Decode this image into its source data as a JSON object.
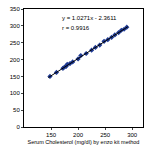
{
  "chart_data": {
    "type": "scatter",
    "x_label": "Serum Cholesterol (mg/dl) by enzo kit method",
    "annotations": [
      "y = 1.0271x - 2.3611",
      "r = 0.9916"
    ],
    "xlim": [
      100,
      320
    ],
    "xticks": [
      150,
      200,
      250,
      300
    ],
    "ylim": [
      0,
      350
    ],
    "yticks": [
      0,
      50,
      100,
      150,
      200,
      250,
      300,
      350
    ],
    "grid": false,
    "series": [
      {
        "type": "scatter",
        "marker": "diamond",
        "color": "#1f3a93",
        "x": [
          148,
          160,
          172,
          175,
          178,
          180,
          185,
          190,
          200,
          205,
          215,
          225,
          232,
          240,
          248,
          255,
          262,
          268,
          275,
          280,
          285,
          290
        ],
        "values": [
          150,
          162,
          174,
          178,
          180,
          186,
          188,
          193,
          202,
          212,
          218,
          228,
          236,
          243,
          254,
          259,
          266,
          273,
          280,
          287,
          290,
          296
        ]
      },
      {
        "type": "line",
        "line_style": "solid",
        "color": "#000000",
        "x": [
          145,
          292
        ],
        "values": [
          146.6,
          297.5
        ]
      }
    ]
  }
}
